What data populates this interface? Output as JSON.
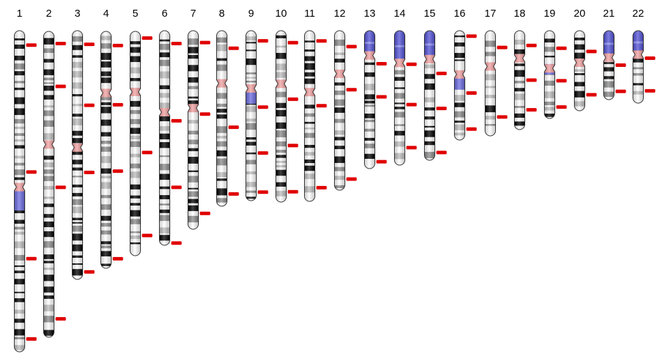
{
  "diagram": {
    "type": "karyotype-ideogram",
    "chromosomes": [
      {
        "label": "1",
        "centromere": 0.487,
        "heterochromatin": [
          0.5,
          0.56
        ],
        "markers": [
          0.045,
          0.44,
          0.71,
          0.96
        ]
      },
      {
        "label": "2",
        "centromere": 0.37,
        "markers": [
          0.04,
          0.18,
          0.51,
          0.94
        ]
      },
      {
        "label": "3",
        "centromere": 0.47,
        "markers": [
          0.055,
          0.3,
          0.57,
          0.97
        ]
      },
      {
        "label": "4",
        "centromere": 0.26,
        "markers": [
          0.06,
          0.31,
          0.59,
          0.96
        ]
      },
      {
        "label": "5",
        "centromere": 0.27,
        "markers": [
          0.03,
          0.54,
          0.91
        ]
      },
      {
        "label": "6",
        "centromere": 0.38,
        "markers": [
          0.06,
          0.42,
          0.73,
          0.99
        ]
      },
      {
        "label": "7",
        "centromere": 0.39,
        "markers": [
          0.06,
          0.42,
          0.92
        ]
      },
      {
        "label": "8",
        "centromere": 0.3,
        "markers": [
          0.1,
          0.55,
          0.93
        ]
      },
      {
        "label": "9",
        "centromere": 0.34,
        "heterochromatin": [
          0.36,
          0.43
        ],
        "markers": [
          0.06,
          0.45,
          0.72,
          0.95
        ]
      },
      {
        "label": "10",
        "centromere": 0.31,
        "markers": [
          0.07,
          0.4,
          0.67,
          0.94
        ]
      },
      {
        "label": "11",
        "centromere": 0.36,
        "markers": [
          0.06,
          0.44,
          0.92
        ]
      },
      {
        "label": "12",
        "centromere": 0.27,
        "markers": [
          0.1,
          0.37,
          0.93
        ]
      },
      {
        "label": "13",
        "centromere": 0.18,
        "short_arm_stalk": true,
        "markers": [
          0.24,
          0.48,
          0.95
        ]
      },
      {
        "label": "14",
        "centromere": 0.24,
        "short_arm_stalk": true,
        "markers": [
          0.25,
          0.55,
          0.87
        ]
      },
      {
        "label": "15",
        "centromere": 0.22,
        "short_arm_stalk": true,
        "markers": [
          0.33,
          0.6,
          0.94
        ]
      },
      {
        "label": "16",
        "centromere": 0.4,
        "heterochromatin": [
          0.43,
          0.54
        ],
        "markers": [
          0.05,
          0.57,
          0.9
        ]
      },
      {
        "label": "17",
        "centromere": 0.34,
        "markers": [
          0.16,
          0.82
        ]
      },
      {
        "label": "18",
        "centromere": 0.28,
        "markers": [
          0.15,
          0.5,
          0.8
        ]
      },
      {
        "label": "19",
        "centromere": 0.43,
        "heterochromatin": [
          0.38,
          0.5
        ],
        "markers": [
          0.2,
          0.57,
          0.87
        ]
      },
      {
        "label": "20",
        "centromere": 0.4,
        "markers": [
          0.26,
          0.8
        ]
      },
      {
        "label": "21",
        "centromere": 0.39,
        "short_arm_stalk": true,
        "markers": [
          0.5,
          0.88
        ]
      },
      {
        "label": "22",
        "centromere": 0.33,
        "short_arm_stalk": true,
        "markers": [
          0.38,
          0.83
        ]
      }
    ]
  },
  "colors": {
    "background": "#ffffff",
    "label": "#000000",
    "band_dark": "#000000",
    "band_gray": "#8a8a8a",
    "band_light": "#bdbdbd",
    "centromere": "#f2a0a0",
    "heterochromatin": "#6b6be0",
    "stalk": "#5252d6",
    "marker": "#e00000",
    "outline": "#333333"
  }
}
